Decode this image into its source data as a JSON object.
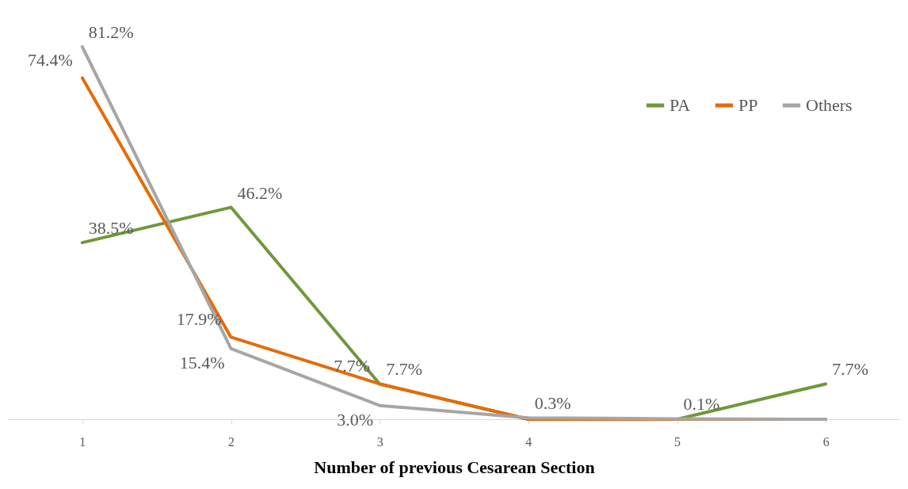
{
  "chart_data": {
    "type": "line",
    "xlabel": "Number of previous Cesarean Section",
    "categories": [
      "1",
      "2",
      "3",
      "4",
      "5",
      "6"
    ],
    "series": [
      {
        "name": "PA",
        "color": "#70983c",
        "values": [
          38.5,
          46.2,
          7.7,
          0,
          0,
          7.7
        ],
        "value_labels": [
          "38.5%",
          "46.2%",
          "7.7%",
          null,
          null,
          "7.7%"
        ]
      },
      {
        "name": "PP",
        "color": "#e46c0a",
        "values": [
          74.4,
          17.9,
          7.7,
          0,
          0,
          0
        ],
        "value_labels": [
          "74.4%",
          "17.9%",
          "7.7%",
          null,
          null,
          null
        ]
      },
      {
        "name": "Others",
        "color": "#a6a6a6",
        "values": [
          81.2,
          15.4,
          3.0,
          0.3,
          0.1,
          0
        ],
        "value_labels": [
          "81.2%",
          "15.4%",
          "3.0%",
          "0.3%",
          "0.1%",
          null
        ]
      }
    ],
    "tick_labels": "x",
    "legend": "top right",
    "grid": false,
    "marker": "none",
    "line_style": "solid"
  }
}
